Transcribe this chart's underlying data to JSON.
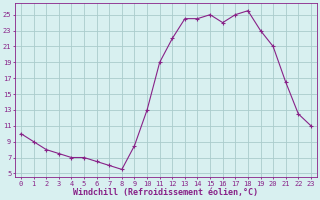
{
  "x": [
    0,
    1,
    2,
    3,
    4,
    5,
    6,
    7,
    8,
    9,
    10,
    11,
    12,
    13,
    14,
    15,
    16,
    17,
    18,
    19,
    20,
    21,
    22,
    23
  ],
  "y": [
    10,
    9,
    8,
    7.5,
    7,
    7,
    6.5,
    6,
    5.5,
    8.5,
    13,
    19,
    22,
    24.5,
    24.5,
    25,
    24,
    25,
    25.5,
    23,
    21,
    16.5,
    12.5,
    11
  ],
  "line_color": "#882288",
  "marker": "+",
  "marker_size": 3,
  "marker_lw": 0.8,
  "line_width": 0.8,
  "bg_color": "#d8f0f0",
  "grid_color": "#aacccc",
  "xlabel": "Windchill (Refroidissement éolien,°C)",
  "xlabel_fontsize": 6.0,
  "tick_fontsize": 5.0,
  "ylabel_ticks": [
    5,
    7,
    9,
    11,
    13,
    15,
    17,
    19,
    21,
    23,
    25
  ],
  "ylim": [
    4.5,
    26.5
  ],
  "xlim": [
    -0.5,
    23.5
  ],
  "xticks": [
    0,
    1,
    2,
    3,
    4,
    5,
    6,
    7,
    8,
    9,
    10,
    11,
    12,
    13,
    14,
    15,
    16,
    17,
    18,
    19,
    20,
    21,
    22,
    23
  ]
}
